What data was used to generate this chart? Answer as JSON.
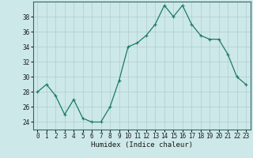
{
  "x": [
    0,
    1,
    2,
    3,
    4,
    5,
    6,
    7,
    8,
    9,
    10,
    11,
    12,
    13,
    14,
    15,
    16,
    17,
    18,
    19,
    20,
    21,
    22,
    23
  ],
  "y": [
    28,
    29,
    27.5,
    25,
    27,
    24.5,
    24,
    24,
    26,
    29.5,
    34,
    34.5,
    35.5,
    37,
    39.5,
    38,
    39.5,
    37,
    35.5,
    35,
    35,
    33,
    30,
    29
  ],
  "line_color": "#1a7a6e",
  "marker": "+",
  "marker_color": "#1a7a6e",
  "bg_color": "#cde8e8",
  "grid_color": "#b0cccc",
  "xlabel": "Humidex (Indice chaleur)",
  "xlim": [
    -0.5,
    23.5
  ],
  "ylim": [
    23,
    40
  ],
  "yticks": [
    24,
    26,
    28,
    30,
    32,
    34,
    36,
    38
  ],
  "xticks": [
    0,
    1,
    2,
    3,
    4,
    5,
    6,
    7,
    8,
    9,
    10,
    11,
    12,
    13,
    14,
    15,
    16,
    17,
    18,
    19,
    20,
    21,
    22,
    23
  ],
  "label_fontsize": 6.5,
  "tick_fontsize": 5.5
}
